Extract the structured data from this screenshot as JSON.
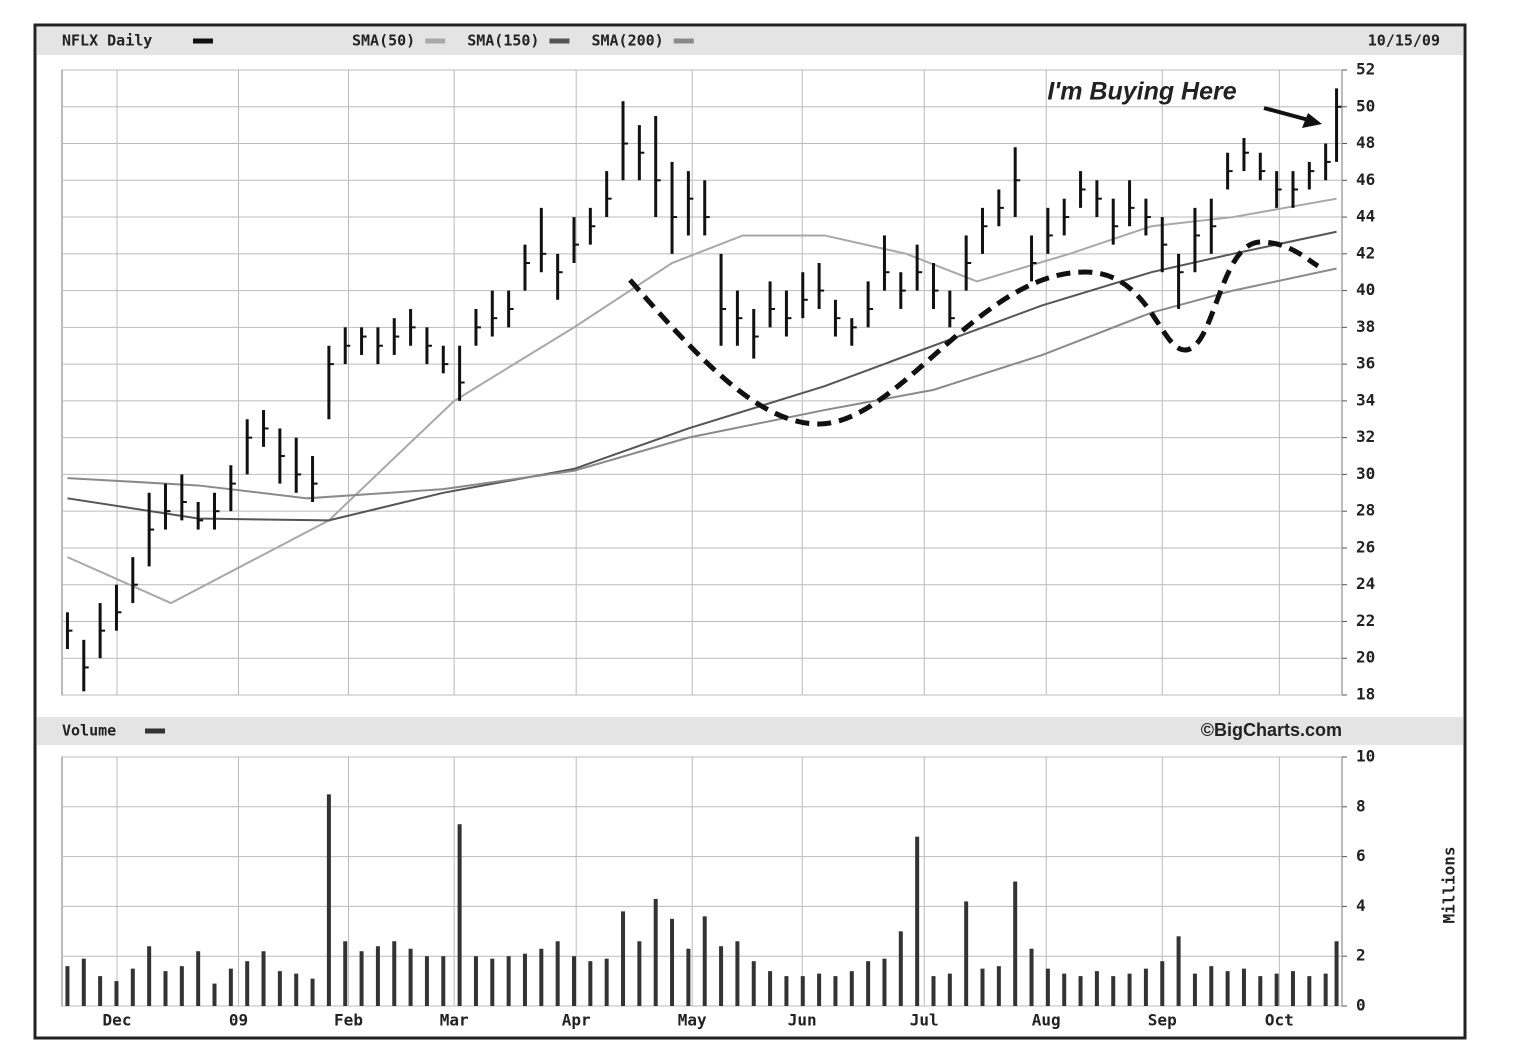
{
  "chart_data": [
    {
      "type": "ohlc",
      "title": "NFLX Daily",
      "date": "10/15/09",
      "color": "#111111",
      "annotation": "I'm Buying Here",
      "x": [
        1,
        4,
        7,
        10,
        13,
        16,
        19,
        22,
        25,
        28,
        31,
        34,
        37,
        40,
        43,
        46,
        49,
        52,
        55,
        58,
        61,
        64,
        67,
        70,
        73,
        76,
        79,
        82,
        85,
        88,
        91,
        94,
        97,
        100,
        103,
        106,
        109,
        112,
        115,
        118,
        121,
        124,
        127,
        130,
        133,
        136,
        139,
        142,
        145,
        148,
        151,
        154,
        157,
        160,
        163,
        166,
        169,
        172,
        175,
        178,
        181,
        184,
        187,
        190,
        193,
        196,
        199,
        202,
        205,
        208,
        211,
        214,
        217,
        220,
        223,
        226,
        229,
        232,
        234
      ],
      "high": [
        22.5,
        21,
        23,
        24,
        25.5,
        29,
        29.5,
        30,
        28.5,
        29,
        30.5,
        33,
        33.5,
        32.5,
        32,
        31,
        37,
        38,
        38,
        38,
        38.5,
        39,
        38,
        37,
        37,
        39,
        40,
        40,
        42.5,
        44.5,
        42,
        44,
        44.5,
        46.5,
        50.3,
        49,
        49.5,
        47,
        46.5,
        46,
        42,
        40,
        39,
        40.5,
        40,
        41,
        41.5,
        39.5,
        38.5,
        40.5,
        43,
        41,
        42.5,
        41.5,
        40,
        43,
        44.5,
        45.5,
        47.8,
        43,
        44.5,
        45,
        46.5,
        46,
        45,
        46,
        45,
        44,
        42,
        44.5,
        45,
        47.5,
        48.3,
        47.5,
        46.5,
        46.5,
        47,
        48,
        51
      ],
      "low": [
        20.5,
        18.2,
        20,
        21.5,
        23,
        25,
        27,
        27.5,
        27,
        27,
        28,
        30,
        31.5,
        29.5,
        29,
        28.5,
        33,
        36,
        36.5,
        36,
        36.5,
        37,
        36,
        35.5,
        34,
        37,
        37.5,
        38,
        40,
        41,
        39.5,
        41.5,
        42.5,
        44,
        46,
        46,
        44,
        42,
        43,
        43,
        37,
        37,
        36.3,
        38,
        37.5,
        38.5,
        39,
        37.5,
        37,
        38,
        40,
        39,
        40,
        39,
        38,
        40,
        42,
        43.5,
        44,
        40.5,
        42,
        43,
        44.5,
        44,
        42.5,
        43.5,
        43,
        41,
        39,
        41,
        42,
        45.5,
        46.5,
        46,
        44.5,
        44.5,
        45.5,
        46,
        47
      ],
      "close": [
        21.5,
        19.5,
        21.5,
        22.5,
        24,
        27,
        28,
        28.5,
        27.5,
        28,
        29.5,
        32,
        32.5,
        31,
        30,
        29.5,
        36,
        37,
        37.5,
        37,
        37.5,
        38,
        37,
        36,
        35,
        38,
        38.5,
        39,
        41.5,
        42,
        41,
        42.5,
        43.5,
        45,
        48,
        47.5,
        46,
        44,
        45,
        44,
        39,
        38.5,
        37.5,
        39,
        38.5,
        39.5,
        40,
        38.5,
        38,
        39,
        41,
        40,
        41,
        40,
        38.5,
        41.5,
        43.5,
        44.5,
        46,
        41.5,
        43,
        44,
        45.5,
        45,
        43.5,
        44.5,
        44,
        42.5,
        41,
        43,
        43.5,
        46.5,
        47.5,
        46.5,
        45.5,
        45.5,
        46.5,
        47,
        50
      ],
      "series": [
        {
          "name": "SMA(50)",
          "color": "#a8a8a8",
          "x": [
            1,
            20,
            49,
            72,
            94,
            112,
            125,
            140,
            155,
            168,
            185,
            200,
            215,
            234
          ],
          "values": [
            25.5,
            23,
            27.5,
            34,
            38,
            41.5,
            43,
            43,
            42,
            40.5,
            42,
            43.5,
            44,
            45
          ]
        },
        {
          "name": "SMA(150)",
          "color": "#555555",
          "x": [
            1,
            25,
            49,
            70,
            94,
            115,
            140,
            160,
            180,
            200,
            215,
            234
          ],
          "values": [
            28.7,
            27.6,
            27.5,
            29,
            30.3,
            32.5,
            34.8,
            37,
            39.2,
            41,
            42,
            43.2
          ]
        },
        {
          "name": "SMA(200)",
          "color": "#8a8a8a",
          "x": [
            1,
            25,
            45,
            70,
            94,
            115,
            140,
            160,
            180,
            200,
            215,
            234
          ],
          "values": [
            29.8,
            29.4,
            28.7,
            29.2,
            30.2,
            32,
            33.5,
            34.6,
            36.5,
            38.8,
            40,
            41.2
          ]
        }
      ],
      "ylim": [
        18,
        52
      ],
      "yticks": [
        18,
        20,
        22,
        24,
        26,
        28,
        30,
        32,
        34,
        36,
        38,
        40,
        42,
        44,
        46,
        48,
        50,
        52
      ],
      "grid": true
    },
    {
      "type": "bar",
      "title": "Volume",
      "source": "©BigCharts.com",
      "y_label": "Millions",
      "color": "#333333",
      "x": [
        1,
        4,
        7,
        10,
        13,
        16,
        19,
        22,
        25,
        28,
        31,
        34,
        37,
        40,
        43,
        46,
        49,
        52,
        55,
        58,
        61,
        64,
        67,
        70,
        73,
        76,
        79,
        82,
        85,
        88,
        91,
        94,
        97,
        100,
        103,
        106,
        109,
        112,
        115,
        118,
        121,
        124,
        127,
        130,
        133,
        136,
        139,
        142,
        145,
        148,
        151,
        154,
        157,
        160,
        163,
        166,
        169,
        172,
        175,
        178,
        181,
        184,
        187,
        190,
        193,
        196,
        199,
        202,
        205,
        208,
        211,
        214,
        217,
        220,
        223,
        226,
        229,
        232,
        234
      ],
      "values": [
        1.6,
        1.9,
        1.2,
        1.0,
        1.5,
        2.4,
        1.4,
        1.6,
        2.2,
        0.9,
        1.5,
        1.8,
        2.2,
        1.4,
        1.3,
        1.1,
        8.5,
        2.6,
        2.2,
        2.4,
        2.6,
        2.3,
        2.0,
        2.0,
        7.3,
        2.0,
        1.9,
        2.0,
        2.1,
        2.3,
        2.6,
        2.0,
        1.8,
        1.9,
        3.8,
        2.6,
        4.3,
        3.5,
        2.3,
        3.6,
        2.4,
        2.6,
        1.8,
        1.4,
        1.2,
        1.2,
        1.3,
        1.2,
        1.4,
        1.8,
        1.9,
        3.0,
        6.8,
        1.2,
        1.3,
        4.2,
        1.5,
        1.6,
        5.0,
        2.3,
        1.5,
        1.3,
        1.2,
        1.4,
        1.2,
        1.3,
        1.5,
        1.8,
        2.8,
        1.3,
        1.6,
        1.4,
        1.5,
        1.2,
        1.3,
        1.4,
        1.2,
        1.3,
        2.6
      ],
      "xlim": [
        0,
        235
      ],
      "xticks": [
        {
          "value": 10.1,
          "label": "Dec"
        },
        {
          "value": 32.4,
          "label": "09"
        },
        {
          "value": 52.6,
          "label": "Feb"
        },
        {
          "value": 72.0,
          "label": "Mar"
        },
        {
          "value": 94.4,
          "label": "Apr"
        },
        {
          "value": 115.7,
          "label": "May"
        },
        {
          "value": 135.9,
          "label": "Jun"
        },
        {
          "value": 158.3,
          "label": "Jul"
        },
        {
          "value": 180.7,
          "label": "Aug"
        },
        {
          "value": 202,
          "label": "Sep"
        },
        {
          "value": 223.5,
          "label": "Oct"
        }
      ],
      "ylim": [
        0,
        10
      ],
      "yticks": [
        0,
        2,
        4,
        6,
        8,
        10
      ],
      "grid": true
    }
  ]
}
